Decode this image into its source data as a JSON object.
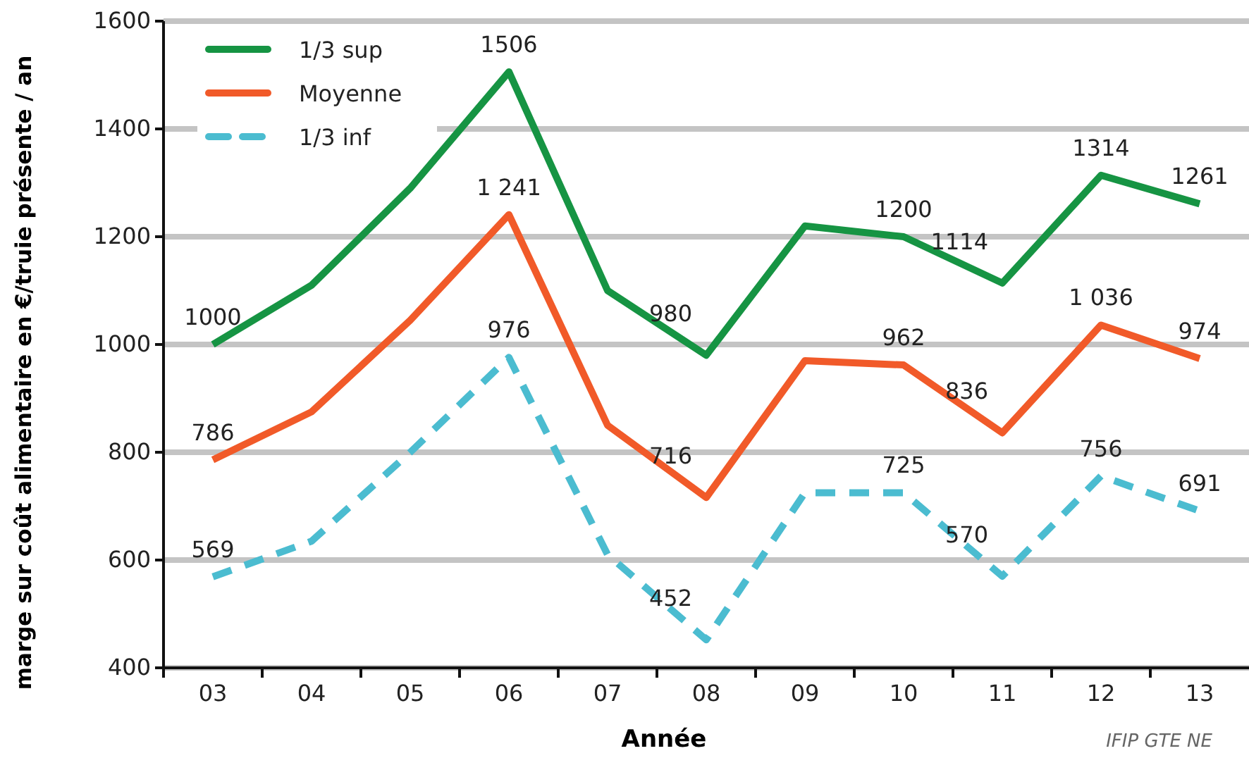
{
  "chart_data": {
    "type": "line",
    "xlabel": "Année",
    "ylabel": "marge sur coût alimentaire en €/truie présente / an",
    "annotations": [
      "IFIP GTE NE"
    ],
    "categories": [
      "03",
      "04",
      "05",
      "06",
      "07",
      "08",
      "09",
      "10",
      "11",
      "12",
      "13"
    ],
    "ylim": [
      400,
      1600
    ],
    "yticks": [
      400,
      600,
      800,
      1000,
      1200,
      1400,
      1600
    ],
    "grid": "y",
    "legend": "top left",
    "marker": "none",
    "series": [
      {
        "name": "1/3 sup",
        "color": "#169443",
        "line_style": "solid",
        "values": [
          1000,
          1110,
          1290,
          1506,
          1100,
          980,
          1220,
          1200,
          1114,
          1314,
          1261
        ],
        "value_labels": [
          "1000",
          null,
          null,
          "1506",
          null,
          "980",
          null,
          "1200",
          "1114",
          "1314",
          "1261"
        ]
      },
      {
        "name": "Moyenne",
        "color": "#f15a29",
        "line_style": "solid",
        "values": [
          786,
          875,
          1045,
          1241,
          850,
          716,
          970,
          962,
          836,
          1036,
          974
        ],
        "value_labels": [
          "786",
          null,
          null,
          "1 241",
          null,
          "716",
          null,
          "962",
          "836",
          "1 036",
          "974"
        ]
      },
      {
        "name": "1/3 inf",
        "color": "#4bbcd0",
        "line_style": "dashed",
        "values": [
          569,
          635,
          800,
          976,
          610,
          452,
          725,
          725,
          570,
          756,
          691
        ],
        "value_labels": [
          "569",
          null,
          null,
          "976",
          null,
          "452",
          null,
          "725",
          "570",
          "756",
          "691"
        ]
      }
    ]
  }
}
